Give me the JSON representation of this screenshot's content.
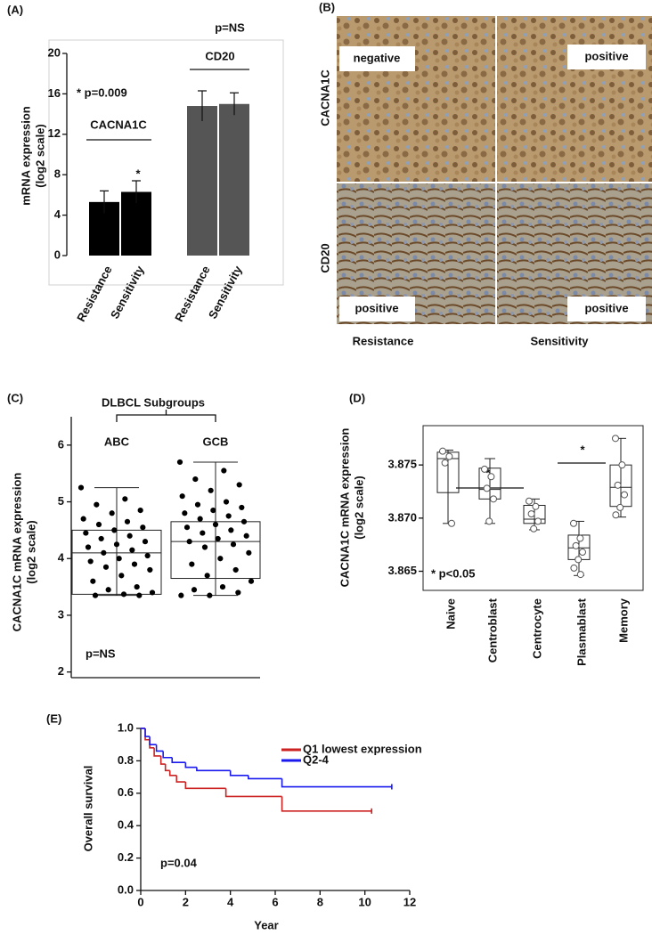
{
  "chart_data": [
    {
      "type": "bar",
      "panel_label": "(A)",
      "ylabel": [
        "mRNA expression",
        "(log2 scale)"
      ],
      "categories": [
        "Resistance",
        "Sensitivity",
        "Resistance",
        "Sensitivity"
      ],
      "series": [
        {
          "name": "CACNA1C",
          "color": "#000000",
          "values": [
            5.3,
            6.3,
            null,
            null
          ],
          "errors": [
            1.1,
            1.1,
            null,
            null
          ]
        },
        {
          "name": "CD20",
          "color": "#555555",
          "values": [
            null,
            null,
            14.8,
            15.0
          ],
          "errors": [
            null,
            null,
            1.5,
            1.1
          ]
        }
      ],
      "ylim": [
        0,
        20
      ],
      "yticks": [
        0,
        4,
        8,
        12,
        16,
        20
      ],
      "annotations": [
        "p=NS",
        "* p=0.009",
        "*"
      ]
    },
    {
      "type": "box",
      "panel_label": "(C)",
      "title": "DLBCL Subgroups",
      "ylabel": [
        "CACNA1C mRNA expression",
        "(log2 scale)"
      ],
      "categories": [
        "ABC",
        "GCB"
      ],
      "boxes": [
        {
          "min": 3.35,
          "q1": 3.37,
          "median": 4.1,
          "q3": 4.5,
          "max": 5.25,
          "points": [
            5.25,
            5.05,
            4.95,
            4.85,
            4.8,
            4.7,
            4.65,
            4.6,
            4.55,
            4.5,
            4.45,
            4.4,
            4.35,
            4.3,
            4.25,
            4.2,
            4.15,
            4.1,
            4.05,
            4.0,
            3.95,
            3.9,
            3.85,
            3.8,
            3.7,
            3.6,
            3.5,
            3.45,
            3.4,
            3.37,
            3.35,
            3.35
          ]
        },
        {
          "min": 3.35,
          "q1": 3.65,
          "median": 4.3,
          "q3": 4.65,
          "max": 5.7,
          "points": [
            5.7,
            5.55,
            5.4,
            5.3,
            5.2,
            5.1,
            5.0,
            4.95,
            4.9,
            4.85,
            4.8,
            4.75,
            4.7,
            4.65,
            4.6,
            4.55,
            4.5,
            4.45,
            4.4,
            4.35,
            4.3,
            4.25,
            4.2,
            4.1,
            4.0,
            3.9,
            3.8,
            3.7,
            3.6,
            3.5,
            3.45,
            3.4,
            3.35,
            3.35
          ]
        }
      ],
      "ylim": [
        1.9,
        6.5
      ],
      "yticks": [
        2,
        3,
        4,
        5,
        6
      ],
      "annotations": [
        "p=NS"
      ]
    },
    {
      "type": "box",
      "panel_label": "(D)",
      "ylabel": [
        "CACNA1C mRNA expression",
        "(log2 scale)"
      ],
      "categories": [
        "Naive",
        "Centroblast",
        "Centrocyte",
        "Plasmablast",
        "Memory"
      ],
      "boxes": [
        {
          "min": 3.8695,
          "q1": 3.8724,
          "median": 3.8756,
          "q3": 3.8762,
          "max": 3.8764,
          "points": [
            3.8763,
            3.8758,
            3.8752,
            3.8695
          ]
        },
        {
          "min": 3.8695,
          "q1": 3.8718,
          "median": 3.8727,
          "q3": 3.8747,
          "max": 3.8756,
          "points": [
            3.8746,
            3.8739,
            3.8728,
            3.8718,
            3.8697
          ]
        },
        {
          "min": 3.8689,
          "q1": 3.8695,
          "median": 3.8699,
          "q3": 3.8712,
          "max": 3.8718,
          "points": [
            3.8716,
            3.8711,
            3.8704,
            3.8697,
            3.869
          ]
        },
        {
          "min": 3.8646,
          "q1": 3.8661,
          "median": 3.8672,
          "q3": 3.8684,
          "max": 3.8697,
          "points": [
            3.8695,
            3.8681,
            3.8674,
            3.8668,
            3.8661,
            3.8653,
            3.8647
          ]
        },
        {
          "min": 3.8701,
          "q1": 3.8711,
          "median": 3.8729,
          "q3": 3.875,
          "max": 3.8775,
          "points": [
            3.8775,
            3.875,
            3.8731,
            3.8722,
            3.871,
            3.8703
          ]
        }
      ],
      "ylim": [
        3.8632,
        3.8787
      ],
      "yticks": [
        3.865,
        {
          "value": 3.87,
          "label": "3.870"
        },
        3.875
      ],
      "annotations": [
        "*",
        "*",
        "* p<0.05"
      ]
    },
    {
      "type": "line",
      "panel_label": "(E)",
      "xlabel": "Year",
      "ylabel": "Overall survival",
      "series": [
        {
          "name": "Q1 lowest expression",
          "color": "#cc2222",
          "x": [
            0,
            0.2,
            0.4,
            0.6,
            0.9,
            1.1,
            1.3,
            1.6,
            2,
            3.8,
            6.3,
            10.3
          ],
          "values": [
            1.0,
            0.93,
            0.88,
            0.83,
            0.78,
            0.74,
            0.71,
            0.67,
            0.63,
            0.58,
            0.49,
            0.49
          ]
        },
        {
          "name": "Q2-4",
          "color": "#1a1aee",
          "x": [
            0,
            0.2,
            0.4,
            0.7,
            1,
            1.4,
            2,
            2.5,
            4,
            4.8,
            6.3,
            11.2
          ],
          "values": [
            1.0,
            0.95,
            0.9,
            0.86,
            0.82,
            0.79,
            0.76,
            0.74,
            0.71,
            0.69,
            0.64,
            0.64
          ]
        }
      ],
      "xlim": [
        0,
        12
      ],
      "xticks": [
        0,
        2,
        4,
        6,
        8,
        10,
        12
      ],
      "ylim": [
        0,
        1
      ],
      "yticks": [
        {
          "value": 0,
          "label": "0.0"
        },
        0.2,
        0.4,
        0.6,
        0.8,
        {
          "value": 1,
          "label": "1.0"
        }
      ],
      "annotations": [
        "p=0.04"
      ]
    }
  ],
  "panel_b": {
    "panel_label": "(B)",
    "rows": [
      "CACNA1C",
      "CD20"
    ],
    "columns": [
      "Resistance",
      "Sensitivity"
    ],
    "tiles": [
      "negative",
      "positive",
      "positive",
      "positive"
    ]
  }
}
